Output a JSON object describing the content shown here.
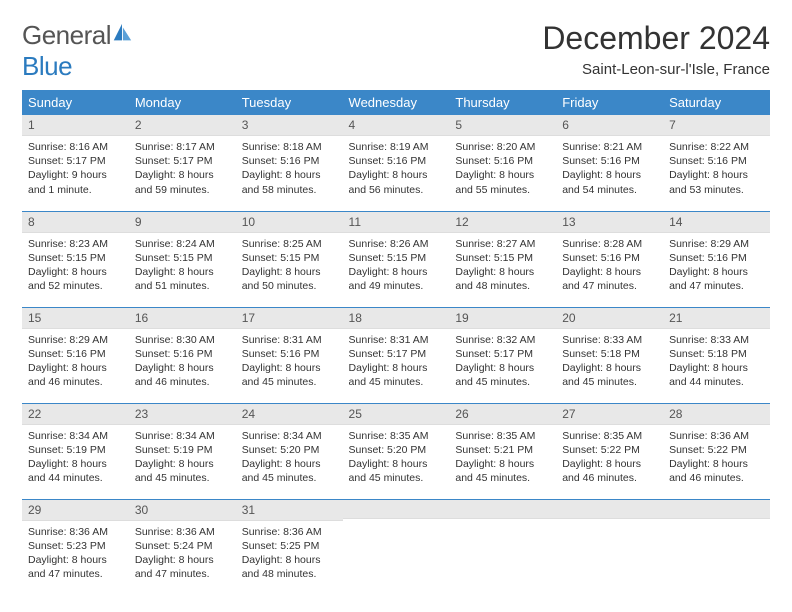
{
  "brand": {
    "word1": "General",
    "word2": "Blue"
  },
  "title": "December 2024",
  "location": "Saint-Leon-sur-l'Isle, France",
  "day_headers": [
    "Sunday",
    "Monday",
    "Tuesday",
    "Wednesday",
    "Thursday",
    "Friday",
    "Saturday"
  ],
  "colors": {
    "header_bg": "#3b87c8",
    "header_text": "#ffffff",
    "daynum_bg": "#e8e8e8",
    "rule": "#3b87c8",
    "logo_blue": "#2b7bbf",
    "body_text": "#333333"
  },
  "weeks": [
    [
      {
        "n": "1",
        "sr": "8:16 AM",
        "ss": "5:17 PM",
        "dl": "9 hours and 1 minute."
      },
      {
        "n": "2",
        "sr": "8:17 AM",
        "ss": "5:17 PM",
        "dl": "8 hours and 59 minutes."
      },
      {
        "n": "3",
        "sr": "8:18 AM",
        "ss": "5:16 PM",
        "dl": "8 hours and 58 minutes."
      },
      {
        "n": "4",
        "sr": "8:19 AM",
        "ss": "5:16 PM",
        "dl": "8 hours and 56 minutes."
      },
      {
        "n": "5",
        "sr": "8:20 AM",
        "ss": "5:16 PM",
        "dl": "8 hours and 55 minutes."
      },
      {
        "n": "6",
        "sr": "8:21 AM",
        "ss": "5:16 PM",
        "dl": "8 hours and 54 minutes."
      },
      {
        "n": "7",
        "sr": "8:22 AM",
        "ss": "5:16 PM",
        "dl": "8 hours and 53 minutes."
      }
    ],
    [
      {
        "n": "8",
        "sr": "8:23 AM",
        "ss": "5:15 PM",
        "dl": "8 hours and 52 minutes."
      },
      {
        "n": "9",
        "sr": "8:24 AM",
        "ss": "5:15 PM",
        "dl": "8 hours and 51 minutes."
      },
      {
        "n": "10",
        "sr": "8:25 AM",
        "ss": "5:15 PM",
        "dl": "8 hours and 50 minutes."
      },
      {
        "n": "11",
        "sr": "8:26 AM",
        "ss": "5:15 PM",
        "dl": "8 hours and 49 minutes."
      },
      {
        "n": "12",
        "sr": "8:27 AM",
        "ss": "5:15 PM",
        "dl": "8 hours and 48 minutes."
      },
      {
        "n": "13",
        "sr": "8:28 AM",
        "ss": "5:16 PM",
        "dl": "8 hours and 47 minutes."
      },
      {
        "n": "14",
        "sr": "8:29 AM",
        "ss": "5:16 PM",
        "dl": "8 hours and 47 minutes."
      }
    ],
    [
      {
        "n": "15",
        "sr": "8:29 AM",
        "ss": "5:16 PM",
        "dl": "8 hours and 46 minutes."
      },
      {
        "n": "16",
        "sr": "8:30 AM",
        "ss": "5:16 PM",
        "dl": "8 hours and 46 minutes."
      },
      {
        "n": "17",
        "sr": "8:31 AM",
        "ss": "5:16 PM",
        "dl": "8 hours and 45 minutes."
      },
      {
        "n": "18",
        "sr": "8:31 AM",
        "ss": "5:17 PM",
        "dl": "8 hours and 45 minutes."
      },
      {
        "n": "19",
        "sr": "8:32 AM",
        "ss": "5:17 PM",
        "dl": "8 hours and 45 minutes."
      },
      {
        "n": "20",
        "sr": "8:33 AM",
        "ss": "5:18 PM",
        "dl": "8 hours and 45 minutes."
      },
      {
        "n": "21",
        "sr": "8:33 AM",
        "ss": "5:18 PM",
        "dl": "8 hours and 44 minutes."
      }
    ],
    [
      {
        "n": "22",
        "sr": "8:34 AM",
        "ss": "5:19 PM",
        "dl": "8 hours and 44 minutes."
      },
      {
        "n": "23",
        "sr": "8:34 AM",
        "ss": "5:19 PM",
        "dl": "8 hours and 45 minutes."
      },
      {
        "n": "24",
        "sr": "8:34 AM",
        "ss": "5:20 PM",
        "dl": "8 hours and 45 minutes."
      },
      {
        "n": "25",
        "sr": "8:35 AM",
        "ss": "5:20 PM",
        "dl": "8 hours and 45 minutes."
      },
      {
        "n": "26",
        "sr": "8:35 AM",
        "ss": "5:21 PM",
        "dl": "8 hours and 45 minutes."
      },
      {
        "n": "27",
        "sr": "8:35 AM",
        "ss": "5:22 PM",
        "dl": "8 hours and 46 minutes."
      },
      {
        "n": "28",
        "sr": "8:36 AM",
        "ss": "5:22 PM",
        "dl": "8 hours and 46 minutes."
      }
    ],
    [
      {
        "n": "29",
        "sr": "8:36 AM",
        "ss": "5:23 PM",
        "dl": "8 hours and 47 minutes."
      },
      {
        "n": "30",
        "sr": "8:36 AM",
        "ss": "5:24 PM",
        "dl": "8 hours and 47 minutes."
      },
      {
        "n": "31",
        "sr": "8:36 AM",
        "ss": "5:25 PM",
        "dl": "8 hours and 48 minutes."
      },
      {
        "empty": true
      },
      {
        "empty": true
      },
      {
        "empty": true
      },
      {
        "empty": true
      }
    ]
  ],
  "labels": {
    "sunrise": "Sunrise: ",
    "sunset": "Sunset: ",
    "daylight": "Daylight: "
  }
}
